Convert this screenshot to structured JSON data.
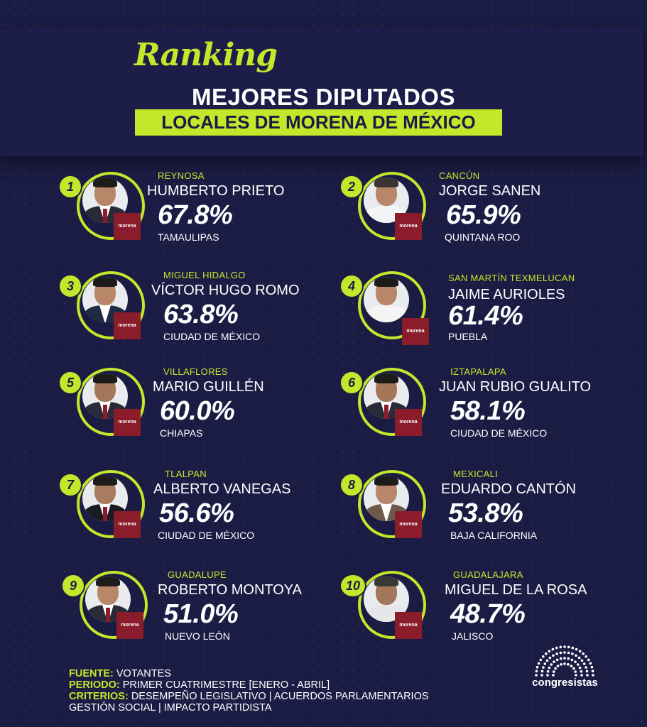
{
  "header": {
    "ranking": "Ranking",
    "title_line1": "MEJORES DIPUTADOS",
    "title_line2": "LOCALES DE MORENA DE MÉXICO"
  },
  "colors": {
    "accent": "#c4e62b",
    "background": "#1b1c44",
    "morena": "#8a1c2c"
  },
  "logo_text": "morena",
  "entries": [
    {
      "rank": "1",
      "city": "REYNOSA",
      "name": "HUMBERTO PRIETO",
      "percent": "67.8%",
      "state": "TAMAULIPAS"
    },
    {
      "rank": "2",
      "city": "CANCÚN",
      "name": "JORGE SANEN",
      "percent": "65.9%",
      "state": "QUINTANA ROO"
    },
    {
      "rank": "3",
      "city": "MIGUEL HIDALGO",
      "name": "VÍCTOR HUGO ROMO",
      "percent": "63.8%",
      "state": "CIUDAD DE MÉXICO"
    },
    {
      "rank": "4",
      "city": "SAN MARTÍN TEXMELUCAN",
      "name": "JAIME AURIOLES",
      "percent": "61.4%",
      "state": "PUEBLA"
    },
    {
      "rank": "5",
      "city": "VILLAFLORES",
      "name": "MARIO GUILLÉN",
      "percent": "60.0%",
      "state": "CHIAPAS"
    },
    {
      "rank": "6",
      "city": "IZTAPALAPA",
      "name": "JUAN RUBIO GUALITO",
      "percent": "58.1%",
      "state": "CIUDAD DE MÉXICO"
    },
    {
      "rank": "7",
      "city": "TLALPAN",
      "name": "ALBERTO VANEGAS",
      "percent": "56.6%",
      "state": "CIUDAD DE MÉXICO"
    },
    {
      "rank": "8",
      "city": "MEXICALI",
      "name": "EDUARDO CANTÓN",
      "percent": "53.8%",
      "state": "BAJA CALIFORNIA"
    },
    {
      "rank": "9",
      "city": "GUADALUPE",
      "name": "ROBERTO MONTOYA",
      "percent": "51.0%",
      "state": "NUEVO LEÓN"
    },
    {
      "rank": "10",
      "city": "GUADALAJARA",
      "name": "MIGUEL DE LA ROSA",
      "percent": "48.7%",
      "state": "JALISCO"
    }
  ],
  "footer": {
    "fuente_label": "FUENTE:",
    "fuente_value": "VOTANTES",
    "periodo_label": "PERIODO:",
    "periodo_value": "PRIMER CUATRIMESTRE [ENERO - ABRIL]",
    "criterios_label": "CRITERIOS:",
    "criterios_value": "DESEMPEÑO LEGISLATIVO | ACUERDOS PARLAMENTARIOS",
    "criterios_value2": "GESTIÓN SOCIAL | IMPACTO PARTIDISTA"
  },
  "brand": {
    "name": "congresistas",
    "icon": "dome-dots-icon"
  }
}
